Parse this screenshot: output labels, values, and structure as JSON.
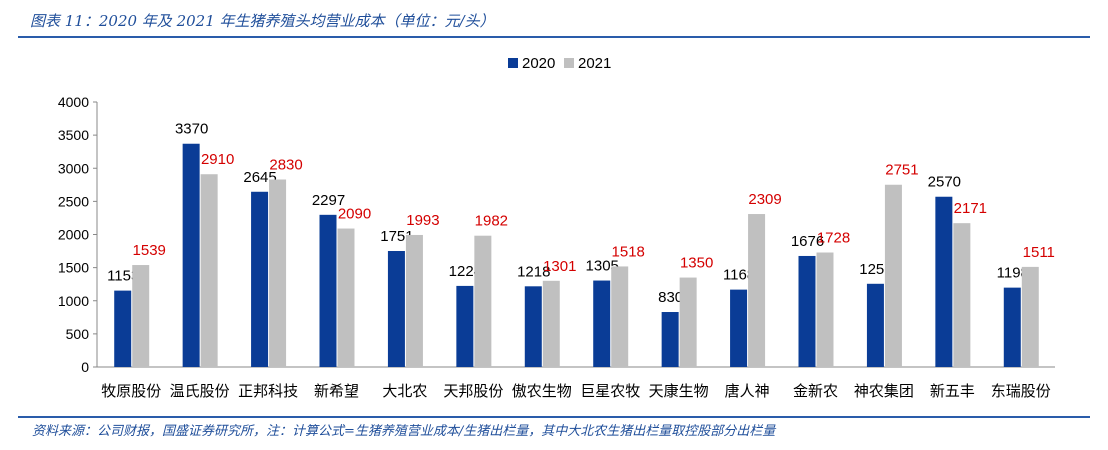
{
  "title": "图表 11：2020 年及 2021 年生猪养殖头均营业成本（单位：元/头）",
  "source": "资料来源：公司财报，国盛证券研究所，注：计算公式=生猪养殖营业成本/生猪出栏量，其中大北农生猪出栏量取控股部分出栏量",
  "chart_data": {
    "type": "bar",
    "categories": [
      "牧原股份",
      "温氏股份",
      "正邦科技",
      "新希望",
      "大北农",
      "天邦股份",
      "傲农生物",
      "巨星农牧",
      "天康生物",
      "唐人神",
      "金新农",
      "神农集团",
      "新五丰",
      "东瑞股份"
    ],
    "series": [
      {
        "name": "2020",
        "color": "#0a3c96",
        "label_color": "#000000",
        "values": [
          1153,
          3370,
          2645,
          2297,
          1751,
          1224,
          1218,
          1305,
          830,
          1168,
          1676,
          1256,
          2570,
          1198
        ]
      },
      {
        "name": "2021",
        "color": "#c0c0c0",
        "label_color": "#d40000",
        "values": [
          1539,
          2910,
          2830,
          2090,
          1993,
          1982,
          1301,
          1518,
          1350,
          2309,
          1728,
          2751,
          2171,
          1511
        ]
      }
    ],
    "yticks": [
      0,
      500,
      1000,
      1500,
      2000,
      2500,
      3000,
      3500,
      4000
    ],
    "ylim": [
      0,
      4000
    ],
    "legend": "top-center"
  }
}
